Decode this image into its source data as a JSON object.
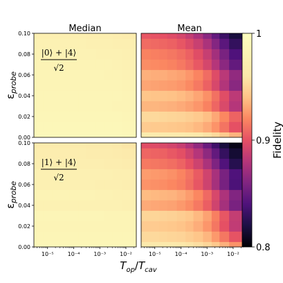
{
  "chart_data": [
    {
      "type": "heatmap",
      "panel": "top-left",
      "title": "Median",
      "row_label": "|0⟩ + |4⟩ / √2",
      "state_numerator": "|0⟩ + |4⟩",
      "state_denominator": "√2",
      "ylabel": "εprobe",
      "yticks": [
        "0.00",
        "0.02",
        "0.04",
        "0.06",
        "0.08",
        "0.10"
      ],
      "xscale": "log",
      "xlim": [
        3e-06,
        0.025
      ],
      "ylim": [
        0.0,
        0.1
      ],
      "x_bin_edges": [
        3e-06,
        7e-06,
        1.5e-05,
        3e-05,
        7e-05,
        0.00015,
        0.0003,
        0.0007,
        0.0015,
        0.003,
        0.007,
        0.025
      ],
      "y_bin_edges": [
        0.0,
        0.005,
        0.015,
        0.025,
        0.035,
        0.045,
        0.055,
        0.065,
        0.075,
        0.085,
        0.095,
        0.1
      ],
      "values": [
        [
          0.99,
          0.99,
          0.99,
          0.99,
          0.99,
          0.99,
          0.99,
          0.99,
          0.99,
          0.99,
          0.989
        ],
        [
          0.988,
          0.988,
          0.988,
          0.988,
          0.988,
          0.988,
          0.988,
          0.988,
          0.988,
          0.988,
          0.987
        ],
        [
          0.986,
          0.986,
          0.986,
          0.986,
          0.986,
          0.986,
          0.986,
          0.986,
          0.986,
          0.986,
          0.985
        ],
        [
          0.984,
          0.984,
          0.984,
          0.984,
          0.984,
          0.984,
          0.984,
          0.984,
          0.984,
          0.983,
          0.983
        ],
        [
          0.985,
          0.985,
          0.985,
          0.985,
          0.985,
          0.985,
          0.985,
          0.985,
          0.985,
          0.984,
          0.983
        ],
        [
          0.983,
          0.983,
          0.983,
          0.983,
          0.983,
          0.983,
          0.983,
          0.983,
          0.982,
          0.982,
          0.981
        ],
        [
          0.982,
          0.982,
          0.982,
          0.982,
          0.982,
          0.982,
          0.982,
          0.982,
          0.981,
          0.98,
          0.979
        ],
        [
          0.981,
          0.981,
          0.981,
          0.981,
          0.981,
          0.981,
          0.981,
          0.98,
          0.98,
          0.979,
          0.978
        ],
        [
          0.979,
          0.979,
          0.979,
          0.979,
          0.979,
          0.979,
          0.979,
          0.978,
          0.978,
          0.977,
          0.976
        ],
        [
          0.977,
          0.977,
          0.977,
          0.977,
          0.977,
          0.977,
          0.976,
          0.976,
          0.975,
          0.974,
          0.973
        ],
        [
          0.973,
          0.973,
          0.973,
          0.973,
          0.973,
          0.973,
          0.972,
          0.972,
          0.971,
          0.97,
          0.968
        ]
      ]
    },
    {
      "type": "heatmap",
      "panel": "top-right",
      "title": "Mean",
      "xscale": "log",
      "xlim": [
        3e-06,
        0.025
      ],
      "ylim": [
        0.0,
        0.1
      ],
      "x_bin_edges": [
        3e-06,
        7e-06,
        1.5e-05,
        3e-05,
        7e-05,
        0.00015,
        0.0003,
        0.0007,
        0.0015,
        0.003,
        0.007,
        0.025
      ],
      "y_bin_edges": [
        0.0,
        0.005,
        0.015,
        0.025,
        0.035,
        0.045,
        0.055,
        0.065,
        0.075,
        0.085,
        0.095,
        0.1
      ],
      "values": [
        [
          0.965,
          0.965,
          0.964,
          0.964,
          0.963,
          0.962,
          0.96,
          0.957,
          0.952,
          0.944,
          0.935
        ],
        [
          0.945,
          0.944,
          0.944,
          0.943,
          0.942,
          0.94,
          0.937,
          0.932,
          0.924,
          0.913,
          0.9
        ],
        [
          0.952,
          0.952,
          0.951,
          0.95,
          0.949,
          0.947,
          0.944,
          0.939,
          0.931,
          0.92,
          0.907
        ],
        [
          0.936,
          0.936,
          0.935,
          0.934,
          0.932,
          0.929,
          0.925,
          0.918,
          0.908,
          0.895,
          0.88
        ],
        [
          0.942,
          0.941,
          0.941,
          0.94,
          0.938,
          0.935,
          0.93,
          0.923,
          0.912,
          0.898,
          0.883
        ],
        [
          0.93,
          0.929,
          0.928,
          0.927,
          0.925,
          0.921,
          0.915,
          0.906,
          0.894,
          0.879,
          0.863
        ],
        [
          0.934,
          0.933,
          0.933,
          0.931,
          0.929,
          0.925,
          0.919,
          0.91,
          0.897,
          0.882,
          0.866
        ],
        [
          0.922,
          0.921,
          0.92,
          0.918,
          0.915,
          0.91,
          0.903,
          0.893,
          0.88,
          0.864,
          0.848
        ],
        [
          0.918,
          0.917,
          0.916,
          0.914,
          0.911,
          0.906,
          0.898,
          0.887,
          0.873,
          0.857,
          0.84
        ],
        [
          0.91,
          0.909,
          0.908,
          0.906,
          0.902,
          0.896,
          0.888,
          0.876,
          0.861,
          0.845,
          0.829
        ],
        [
          0.902,
          0.901,
          0.9,
          0.897,
          0.893,
          0.886,
          0.876,
          0.863,
          0.848,
          0.832,
          0.818
        ]
      ]
    },
    {
      "type": "heatmap",
      "panel": "bottom-left",
      "row_label": "|1⟩ + |4⟩ / √2",
      "state_numerator": "|1⟩ + |4⟩",
      "state_denominator": "√2",
      "ylabel": "εprobe",
      "yticks": [
        "0.00",
        "0.02",
        "0.04",
        "0.06",
        "0.08",
        "0.10"
      ],
      "xlabel": "Top/Tcav",
      "xticks": [
        "10⁻⁵",
        "10⁻⁴",
        "10⁻³",
        "10⁻²"
      ],
      "xscale": "log",
      "xlim": [
        3e-06,
        0.025
      ],
      "ylim": [
        0.0,
        0.1
      ],
      "x_bin_edges": [
        3e-06,
        7e-06,
        1.5e-05,
        3e-05,
        7e-05,
        0.00015,
        0.0003,
        0.0007,
        0.0015,
        0.003,
        0.007,
        0.025
      ],
      "y_bin_edges": [
        0.0,
        0.005,
        0.015,
        0.025,
        0.035,
        0.045,
        0.055,
        0.065,
        0.075,
        0.085,
        0.095,
        0.1
      ],
      "values": [
        [
          0.987,
          0.987,
          0.987,
          0.987,
          0.987,
          0.987,
          0.987,
          0.987,
          0.987,
          0.987,
          0.986
        ],
        [
          0.985,
          0.985,
          0.985,
          0.985,
          0.985,
          0.985,
          0.985,
          0.985,
          0.985,
          0.985,
          0.984
        ],
        [
          0.983,
          0.983,
          0.983,
          0.983,
          0.983,
          0.983,
          0.983,
          0.983,
          0.983,
          0.982,
          0.982
        ],
        [
          0.984,
          0.984,
          0.984,
          0.984,
          0.984,
          0.984,
          0.984,
          0.984,
          0.983,
          0.983,
          0.982
        ],
        [
          0.978,
          0.978,
          0.978,
          0.978,
          0.978,
          0.978,
          0.978,
          0.978,
          0.977,
          0.977,
          0.976
        ],
        [
          0.98,
          0.98,
          0.98,
          0.98,
          0.98,
          0.98,
          0.98,
          0.979,
          0.979,
          0.978,
          0.977
        ],
        [
          0.975,
          0.975,
          0.975,
          0.975,
          0.975,
          0.975,
          0.975,
          0.974,
          0.974,
          0.973,
          0.972
        ],
        [
          0.976,
          0.976,
          0.976,
          0.976,
          0.976,
          0.976,
          0.976,
          0.975,
          0.975,
          0.974,
          0.973
        ],
        [
          0.972,
          0.972,
          0.972,
          0.972,
          0.972,
          0.972,
          0.971,
          0.971,
          0.97,
          0.969,
          0.968
        ],
        [
          0.969,
          0.969,
          0.969,
          0.969,
          0.969,
          0.969,
          0.968,
          0.968,
          0.967,
          0.966,
          0.964
        ],
        [
          0.965,
          0.965,
          0.965,
          0.965,
          0.965,
          0.965,
          0.964,
          0.964,
          0.963,
          0.961,
          0.959
        ]
      ]
    },
    {
      "type": "heatmap",
      "panel": "bottom-right",
      "xlabel": "Top/Tcav",
      "xticks": [
        "10⁻⁵",
        "10⁻⁴",
        "10⁻³",
        "10⁻²"
      ],
      "xscale": "log",
      "xlim": [
        3e-06,
        0.025
      ],
      "ylim": [
        0.0,
        0.1
      ],
      "x_bin_edges": [
        3e-06,
        7e-06,
        1.5e-05,
        3e-05,
        7e-05,
        0.00015,
        0.0003,
        0.0007,
        0.0015,
        0.003,
        0.007,
        0.025
      ],
      "y_bin_edges": [
        0.0,
        0.005,
        0.015,
        0.025,
        0.035,
        0.045,
        0.055,
        0.065,
        0.075,
        0.085,
        0.095,
        0.1
      ],
      "values": [
        [
          0.962,
          0.962,
          0.961,
          0.961,
          0.96,
          0.958,
          0.955,
          0.95,
          0.943,
          0.934,
          0.924
        ],
        [
          0.952,
          0.952,
          0.951,
          0.95,
          0.949,
          0.946,
          0.942,
          0.936,
          0.926,
          0.914,
          0.901
        ],
        [
          0.945,
          0.945,
          0.944,
          0.943,
          0.941,
          0.938,
          0.933,
          0.925,
          0.914,
          0.9,
          0.885
        ],
        [
          0.95,
          0.95,
          0.949,
          0.948,
          0.946,
          0.943,
          0.937,
          0.929,
          0.917,
          0.902,
          0.886
        ],
        [
          0.932,
          0.931,
          0.93,
          0.929,
          0.926,
          0.922,
          0.915,
          0.905,
          0.891,
          0.874,
          0.857
        ],
        [
          0.938,
          0.937,
          0.936,
          0.935,
          0.932,
          0.927,
          0.92,
          0.909,
          0.894,
          0.877,
          0.86
        ],
        [
          0.924,
          0.923,
          0.922,
          0.92,
          0.917,
          0.911,
          0.902,
          0.89,
          0.874,
          0.856,
          0.839
        ],
        [
          0.927,
          0.926,
          0.925,
          0.923,
          0.919,
          0.913,
          0.904,
          0.891,
          0.875,
          0.857,
          0.84
        ],
        [
          0.915,
          0.914,
          0.913,
          0.911,
          0.907,
          0.9,
          0.89,
          0.876,
          0.859,
          0.841,
          0.824
        ],
        [
          0.908,
          0.907,
          0.906,
          0.903,
          0.899,
          0.891,
          0.88,
          0.865,
          0.848,
          0.83,
          0.815
        ],
        [
          0.898,
          0.897,
          0.895,
          0.892,
          0.887,
          0.878,
          0.866,
          0.851,
          0.834,
          0.818,
          0.806
        ]
      ]
    }
  ],
  "colorbar": {
    "label": "Fidelity",
    "colormap": "magma",
    "vmin": 0.8,
    "vmax": 1.0,
    "ticks": [
      "0.8",
      "0.9",
      "1"
    ]
  },
  "colors": {
    "background": "#ffffff",
    "text": "#000000"
  }
}
